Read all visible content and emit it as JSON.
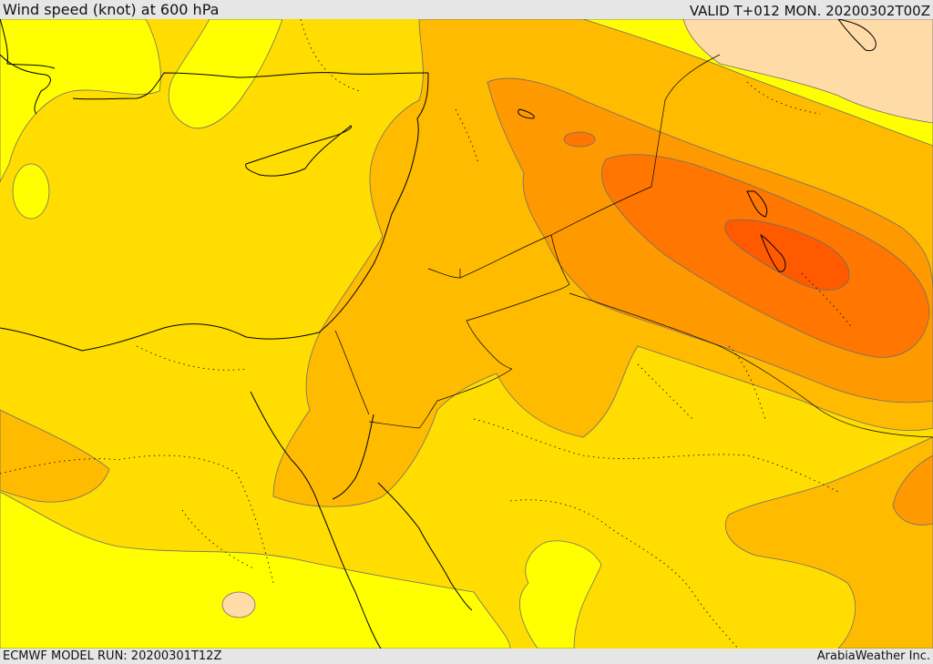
{
  "header": {
    "title": "Wind speed (knot) at 600 hPa",
    "valid_time": "VALID T+012 MON. 20200302T00Z"
  },
  "footer": {
    "model_run": "ECMWF MODEL RUN: 20200301T12Z",
    "credit": "ArabiaWeather Inc."
  },
  "colors": {
    "level_1": "#ffff00",
    "level_2": "#ffdd00",
    "level_3": "#ffbb00",
    "level_4": "#ff9900",
    "level_5": "#ff7700",
    "level_6": "#ff5a00",
    "light_patch": "#ffdba8",
    "contour_line": "#6e6e6e",
    "coastline": "#000000"
  }
}
